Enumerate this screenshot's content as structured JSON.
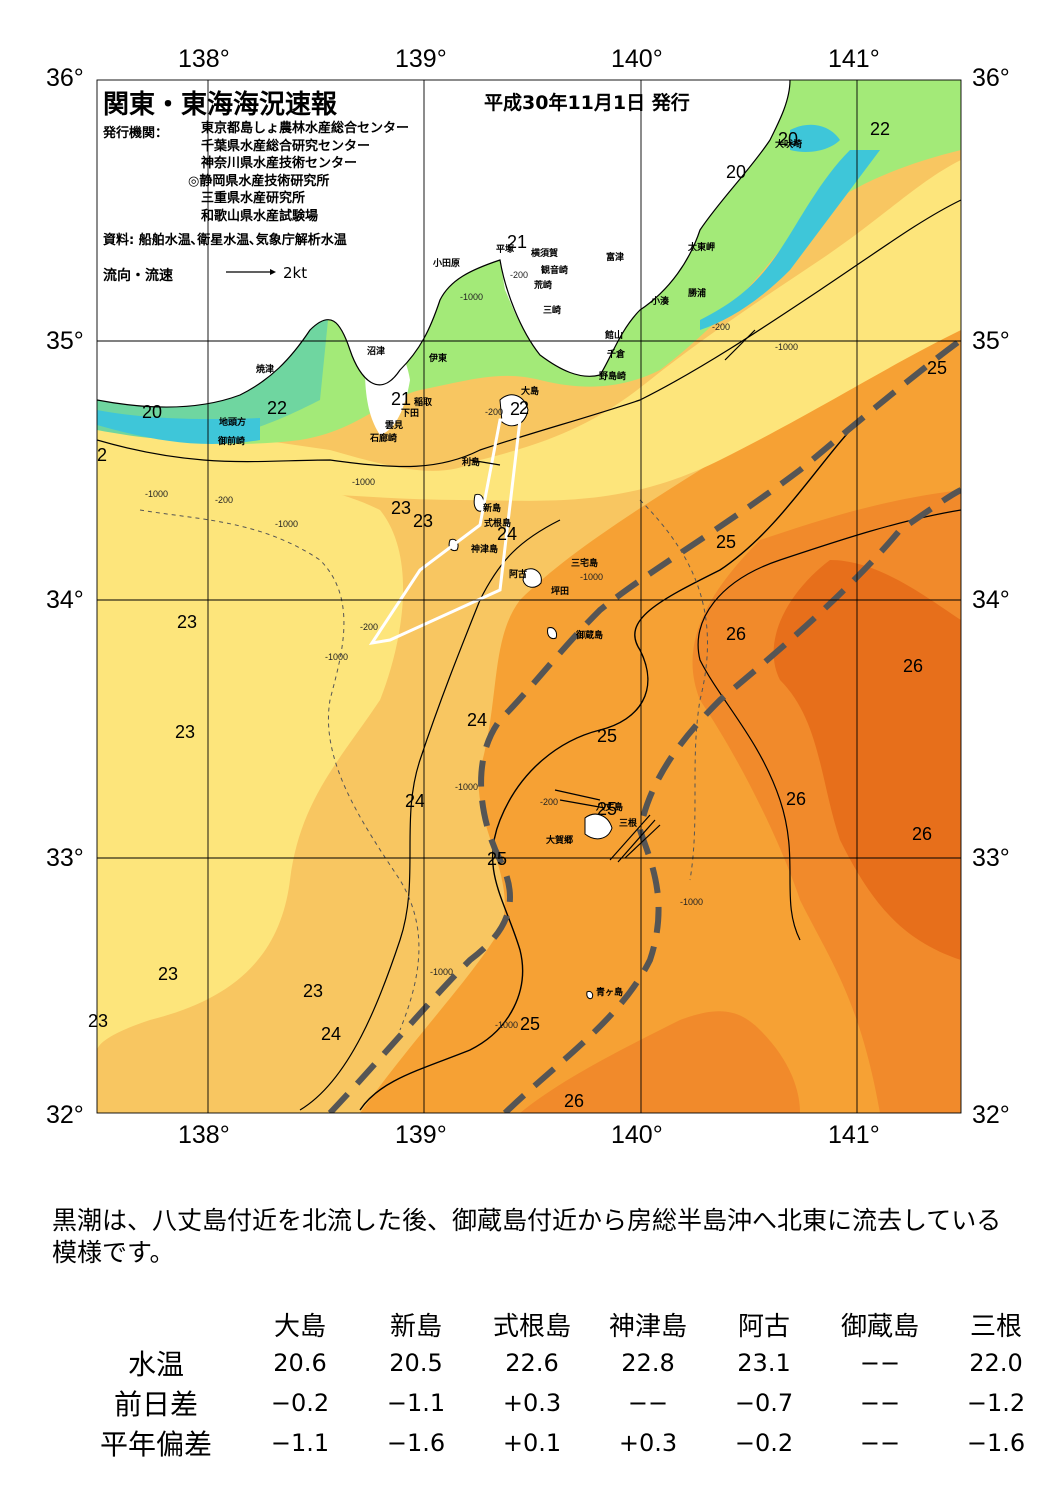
{
  "map": {
    "title": "関東・東海海況速報",
    "issue_date": "平成30年11月1日 発行",
    "issuers_label": "発行機関：",
    "issuers": [
      "東京都島しょ農林水産総合センター",
      "千葉県水産総合研究センター",
      "神奈川県水産技術センター",
      "◎静岡県水産技術研究所",
      "三重県水産研究所",
      "和歌山県水産試験場"
    ],
    "sources": "資料: 船舶水温､衛星水温､気象庁解析水温",
    "flow_legend": "流向・流速",
    "flow_scale": "2kt",
    "lon_labels": [
      "138°",
      "139°",
      "140°",
      "141°"
    ],
    "lat_labels": [
      "36°",
      "35°",
      "34°",
      "33°",
      "32°"
    ],
    "temperature_labels": [
      "20",
      "22",
      "20",
      "21",
      "20",
      "22",
      "21",
      "2",
      "23",
      "24",
      "25",
      "23",
      "23",
      "24",
      "24",
      "25",
      "26",
      "26",
      "25",
      "25",
      "26",
      "26",
      "23",
      "23",
      "24",
      "25",
      "26",
      "2",
      "23",
      "25",
      "23",
      "2"
    ],
    "depth_labels": [
      "-1000",
      "-200",
      "-1000",
      "-200",
      "-1000",
      "-1000",
      "-200",
      "-1000",
      "-200",
      "-1000",
      "-1000",
      "-1000",
      "-200",
      "-1000",
      "-1000",
      "-1000",
      "-200"
    ],
    "place_names": [
      "大吠埼",
      "太東岬",
      "勝浦",
      "小湊",
      "富津",
      "横須賀",
      "観音崎",
      "平塚",
      "小田原",
      "荒崎",
      "三崎",
      "館山",
      "千倉",
      "野島崎",
      "沼津",
      "伊東",
      "焼津",
      "地頭方",
      "御前崎",
      "稲取",
      "下田",
      "雲見",
      "石廊崎",
      "大島",
      "利島",
      "新島",
      "式根島",
      "神津島",
      "三宅島",
      "阿古",
      "坪田",
      "御蔵島",
      "八丈島",
      "大賀郷",
      "三根",
      "青ヶ島"
    ],
    "colors": {
      "t20": "#3ec6d9",
      "t21": "#6fd6a0",
      "t22": "#a3ea78",
      "t23": "#fde57b",
      "t24": "#f8c661",
      "t25": "#f6a134",
      "t26": "#f18a2b",
      "t27": "#e76f1b",
      "land": "#ffffff",
      "kuroshio_axis": "#555555"
    }
  },
  "summary": "黒潮は、八丈島付近を北流した後、御蔵島付近から房総半島沖へ北東に流去している模様です。",
  "table": {
    "columns": [
      "大島",
      "新島",
      "式根島",
      "神津島",
      "阿古",
      "御蔵島",
      "三根"
    ],
    "rows": [
      {
        "label": "水温",
        "values": [
          "20.6",
          "20.5",
          "22.6",
          "22.8",
          "23.1",
          "−−",
          "22.0"
        ]
      },
      {
        "label": "前日差",
        "values": [
          "−0.2",
          "−1.1",
          "+0.3",
          "−−",
          "−0.7",
          "−−",
          "−1.2"
        ]
      },
      {
        "label": "平年偏差",
        "values": [
          "−1.1",
          "−1.6",
          "+0.1",
          "+0.3",
          "−0.2",
          "−−",
          "−1.6"
        ]
      }
    ]
  }
}
